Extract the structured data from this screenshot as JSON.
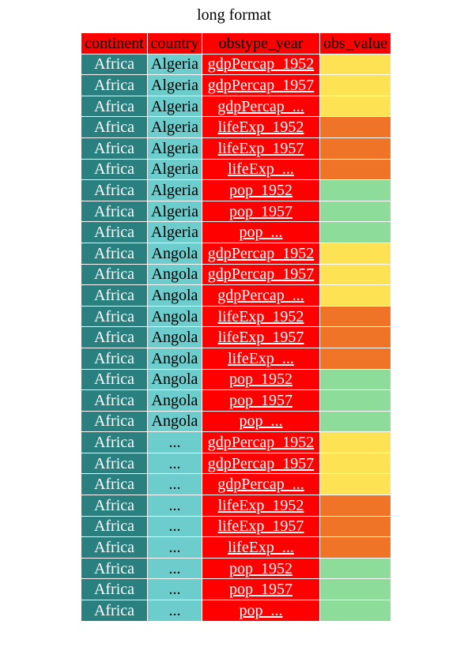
{
  "title": "long format",
  "colors": {
    "header_bg": "#ff0000",
    "continent_bg": "#2a7f7f",
    "country_named_bg": "#6dcdcd",
    "country_ellipsis_bg": "#6dcdcd",
    "obstype_bg": "#ff0000",
    "gdpPercap": "#fde254",
    "lifeExp": "#f07428",
    "pop": "#8edc9a"
  },
  "headers": [
    "continent",
    "country",
    "obstype_year",
    "obs_value"
  ],
  "rows": [
    {
      "continent": "Africa",
      "country": "Algeria",
      "obstype_year": "gdpPercap_1952",
      "group": "gdpPercap"
    },
    {
      "continent": "Africa",
      "country": "Algeria",
      "obstype_year": "gdpPercap_1957",
      "group": "gdpPercap"
    },
    {
      "continent": "Africa",
      "country": "Algeria",
      "obstype_year": "gdpPercap_...",
      "group": "gdpPercap"
    },
    {
      "continent": "Africa",
      "country": "Algeria",
      "obstype_year": "lifeExp_1952",
      "group": "lifeExp"
    },
    {
      "continent": "Africa",
      "country": "Algeria",
      "obstype_year": "lifeExp_1957",
      "group": "lifeExp"
    },
    {
      "continent": "Africa",
      "country": "Algeria",
      "obstype_year": "lifeExp_...",
      "group": "lifeExp"
    },
    {
      "continent": "Africa",
      "country": "Algeria",
      "obstype_year": "pop_1952",
      "group": "pop"
    },
    {
      "continent": "Africa",
      "country": "Algeria",
      "obstype_year": "pop_1957",
      "group": "pop"
    },
    {
      "continent": "Africa",
      "country": "Algeria",
      "obstype_year": "pop_...",
      "group": "pop"
    },
    {
      "continent": "Africa",
      "country": "Angola",
      "obstype_year": "gdpPercap_1952",
      "group": "gdpPercap"
    },
    {
      "continent": "Africa",
      "country": "Angola",
      "obstype_year": "gdpPercap_1957",
      "group": "gdpPercap"
    },
    {
      "continent": "Africa",
      "country": "Angola",
      "obstype_year": "gdpPercap_...",
      "group": "gdpPercap"
    },
    {
      "continent": "Africa",
      "country": "Angola",
      "obstype_year": "lifeExp_1952",
      "group": "lifeExp"
    },
    {
      "continent": "Africa",
      "country": "Angola",
      "obstype_year": "lifeExp_1957",
      "group": "lifeExp"
    },
    {
      "continent": "Africa",
      "country": "Angola",
      "obstype_year": "lifeExp_...",
      "group": "lifeExp"
    },
    {
      "continent": "Africa",
      "country": "Angola",
      "obstype_year": "pop_1952",
      "group": "pop"
    },
    {
      "continent": "Africa",
      "country": "Angola",
      "obstype_year": "pop_1957",
      "group": "pop"
    },
    {
      "continent": "Africa",
      "country": "Angola",
      "obstype_year": "pop_...",
      "group": "pop"
    },
    {
      "continent": "Africa",
      "country": "...",
      "obstype_year": "gdpPercap_1952",
      "group": "gdpPercap"
    },
    {
      "continent": "Africa",
      "country": "...",
      "obstype_year": "gdpPercap_1957",
      "group": "gdpPercap"
    },
    {
      "continent": "Africa",
      "country": "...",
      "obstype_year": "gdpPercap_...",
      "group": "gdpPercap"
    },
    {
      "continent": "Africa",
      "country": "...",
      "obstype_year": "lifeExp_1952",
      "group": "lifeExp"
    },
    {
      "continent": "Africa",
      "country": "...",
      "obstype_year": "lifeExp_1957",
      "group": "lifeExp"
    },
    {
      "continent": "Africa",
      "country": "...",
      "obstype_year": "lifeExp_...",
      "group": "lifeExp"
    },
    {
      "continent": "Africa",
      "country": "...",
      "obstype_year": "pop_1952",
      "group": "pop"
    },
    {
      "continent": "Africa",
      "country": "...",
      "obstype_year": "pop_1957",
      "group": "pop"
    },
    {
      "continent": "Africa",
      "country": "...",
      "obstype_year": "pop_...",
      "group": "pop"
    }
  ]
}
